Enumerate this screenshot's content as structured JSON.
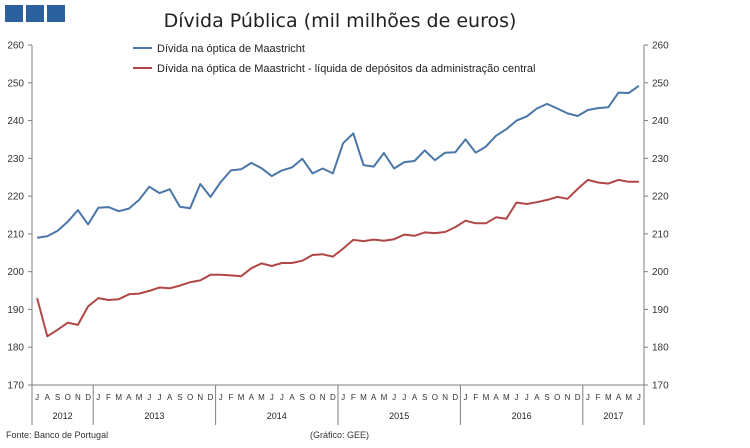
{
  "chart_data": {
    "type": "line",
    "title": "Dívida Pública (mil milhões de euros)",
    "ylim": [
      170,
      260
    ],
    "yticks": [
      170,
      180,
      190,
      200,
      210,
      220,
      230,
      240,
      250,
      260
    ],
    "grid": false,
    "legend": "top",
    "month_labels": [
      "J",
      "A",
      "S",
      "O",
      "N",
      "D",
      "J",
      "F",
      "M",
      "A",
      "M",
      "J",
      "J",
      "A",
      "S",
      "O",
      "N",
      "D",
      "J",
      "F",
      "M",
      "A",
      "M",
      "J",
      "J",
      "A",
      "S",
      "O",
      "N",
      "D",
      "J",
      "F",
      "M",
      "A",
      "M",
      "J",
      "J",
      "A",
      "S",
      "O",
      "N",
      "D",
      "J",
      "F",
      "M",
      "A",
      "M",
      "J",
      "J",
      "A",
      "S",
      "O",
      "N",
      "D",
      "J",
      "F",
      "M",
      "A",
      "M",
      "J"
    ],
    "years": [
      {
        "label": "2012",
        "start": 0,
        "end": 6
      },
      {
        "label": "2013",
        "start": 6,
        "end": 18
      },
      {
        "label": "2014",
        "start": 18,
        "end": 30
      },
      {
        "label": "2015",
        "start": 30,
        "end": 42
      },
      {
        "label": "2016",
        "start": 42,
        "end": 54
      },
      {
        "label": "2017",
        "start": 54,
        "end": 60
      }
    ],
    "series": [
      {
        "name": "Dívida na óptica de Maastricht",
        "color": "#4a76a8",
        "values": [
          209.0,
          209.4,
          210.8,
          213.2,
          216.3,
          212.5,
          216.9,
          217.1,
          216.0,
          216.7,
          219.0,
          222.5,
          220.8,
          221.8,
          217.2,
          216.8,
          223.2,
          219.8,
          223.7,
          226.8,
          227.1,
          228.8,
          227.4,
          225.3,
          226.8,
          227.6,
          229.9,
          226.0,
          227.3,
          226.0,
          234.0,
          236.6,
          228.2,
          227.8,
          231.4,
          227.3,
          229.0,
          229.3,
          232.1,
          229.5,
          231.5,
          231.6,
          235.0,
          231.5,
          233.1,
          236.0,
          237.7,
          240.0,
          241.1,
          243.2,
          244.4,
          243.2,
          241.9,
          241.2,
          242.8,
          243.3,
          243.5,
          247.4,
          247.3,
          249.2
        ]
      },
      {
        "name": "Dívida na óptica de Maastricht - líquida de depósitos da administração central",
        "color": "#b14745",
        "values": [
          193.0,
          182.9,
          184.6,
          186.5,
          185.9,
          190.8,
          193.0,
          192.5,
          192.7,
          194.0,
          194.2,
          194.9,
          195.8,
          195.6,
          196.3,
          197.2,
          197.7,
          199.2,
          199.2,
          199.0,
          198.8,
          200.9,
          202.2,
          201.5,
          202.3,
          202.3,
          202.9,
          204.4,
          204.6,
          204.0,
          206.1,
          208.4,
          208.1,
          208.5,
          208.2,
          208.6,
          209.8,
          209.5,
          210.4,
          210.2,
          210.5,
          211.8,
          213.5,
          212.8,
          212.8,
          214.4,
          214.0,
          218.3,
          217.9,
          218.4,
          219.0,
          219.8,
          219.3,
          221.9,
          224.3,
          223.6,
          223.3,
          224.3,
          223.8,
          223.8
        ]
      }
    ]
  },
  "footer": {
    "source": "Fonte: Banco de Portugal",
    "credit": "(Gráfico: GEE)"
  },
  "colors": {
    "logo": "#2c5f9e",
    "axis": "#7f7f7f"
  }
}
